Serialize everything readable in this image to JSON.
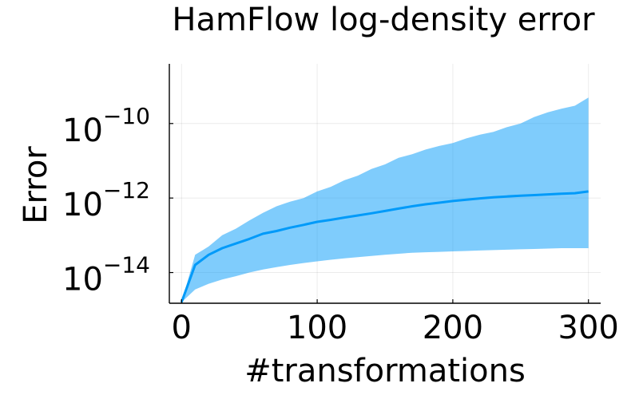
{
  "chart_data": {
    "type": "area",
    "title": "HamFlow log-density error",
    "xlabel": "#transformations",
    "ylabel": "Error",
    "x_range": [
      0,
      300
    ],
    "xlim": [
      -9,
      309
    ],
    "y_scale": "log10",
    "ylim": [
      1.5e-15,
      4e-09
    ],
    "x_ticks": [
      0,
      100,
      200,
      300
    ],
    "x_tick_labels": [
      "0",
      "100",
      "200",
      "300"
    ],
    "y_ticks": [
      1e-14,
      1e-12,
      1e-10
    ],
    "y_tick_labels": [
      {
        "base": "10",
        "exponent": "−14"
      },
      {
        "base": "10",
        "exponent": "−12"
      },
      {
        "base": "10",
        "exponent": "−10"
      }
    ],
    "grid": true,
    "legend": "none",
    "series": [
      {
        "kind": "mean-line",
        "color": "#009af9",
        "x": [
          0,
          10,
          20,
          30,
          40,
          50,
          60,
          70,
          80,
          90,
          100,
          110,
          120,
          130,
          140,
          150,
          160,
          170,
          180,
          190,
          200,
          210,
          220,
          230,
          240,
          250,
          260,
          270,
          280,
          290,
          300
        ],
        "y": [
          1.6e-15,
          1.6e-14,
          3e-14,
          4.5e-14,
          6e-14,
          8e-14,
          1.1e-13,
          1.3e-13,
          1.6e-13,
          1.9e-13,
          2.3e-13,
          2.6e-13,
          3e-13,
          3.4e-13,
          3.9e-13,
          4.5e-13,
          5.2e-13,
          6e-13,
          6.8e-13,
          7.5e-13,
          8.3e-13,
          9e-13,
          9.8e-13,
          1.05e-12,
          1.1e-12,
          1.15e-12,
          1.2e-12,
          1.25e-12,
          1.3e-12,
          1.35e-12,
          1.5e-12
        ]
      },
      {
        "kind": "band",
        "color": "#009af9",
        "opacity": 0.5,
        "x": [
          0,
          10,
          20,
          30,
          40,
          50,
          60,
          70,
          80,
          90,
          100,
          110,
          120,
          130,
          140,
          150,
          160,
          170,
          180,
          190,
          200,
          210,
          220,
          230,
          240,
          250,
          260,
          270,
          280,
          290,
          300
        ],
        "lower": [
          1.6e-15,
          3.5e-15,
          5e-15,
          6.5e-15,
          8e-15,
          1e-14,
          1.2e-14,
          1.4e-14,
          1.6e-14,
          1.8e-14,
          2e-14,
          2.2e-14,
          2.4e-14,
          2.6e-14,
          2.8e-14,
          3e-14,
          3.2e-14,
          3.4e-14,
          3.5e-14,
          3.6e-14,
          3.7e-14,
          3.8e-14,
          3.9e-14,
          4e-14,
          4.1e-14,
          4.2e-14,
          4.3e-14,
          4.4e-14,
          4.5e-14,
          4.5e-14,
          4.5e-14
        ],
        "upper": [
          1.6e-15,
          3e-14,
          5e-14,
          1e-13,
          1.5e-13,
          2.5e-13,
          4e-13,
          6e-13,
          8e-13,
          1e-12,
          1.5e-12,
          2e-12,
          3e-12,
          4e-12,
          6e-12,
          8e-12,
          1.2e-11,
          1.5e-11,
          2e-11,
          2.5e-11,
          3e-11,
          4e-11,
          5e-11,
          6e-11,
          8e-11,
          1e-10,
          1.5e-10,
          2e-10,
          2.5e-10,
          3e-10,
          5e-10
        ]
      }
    ]
  }
}
